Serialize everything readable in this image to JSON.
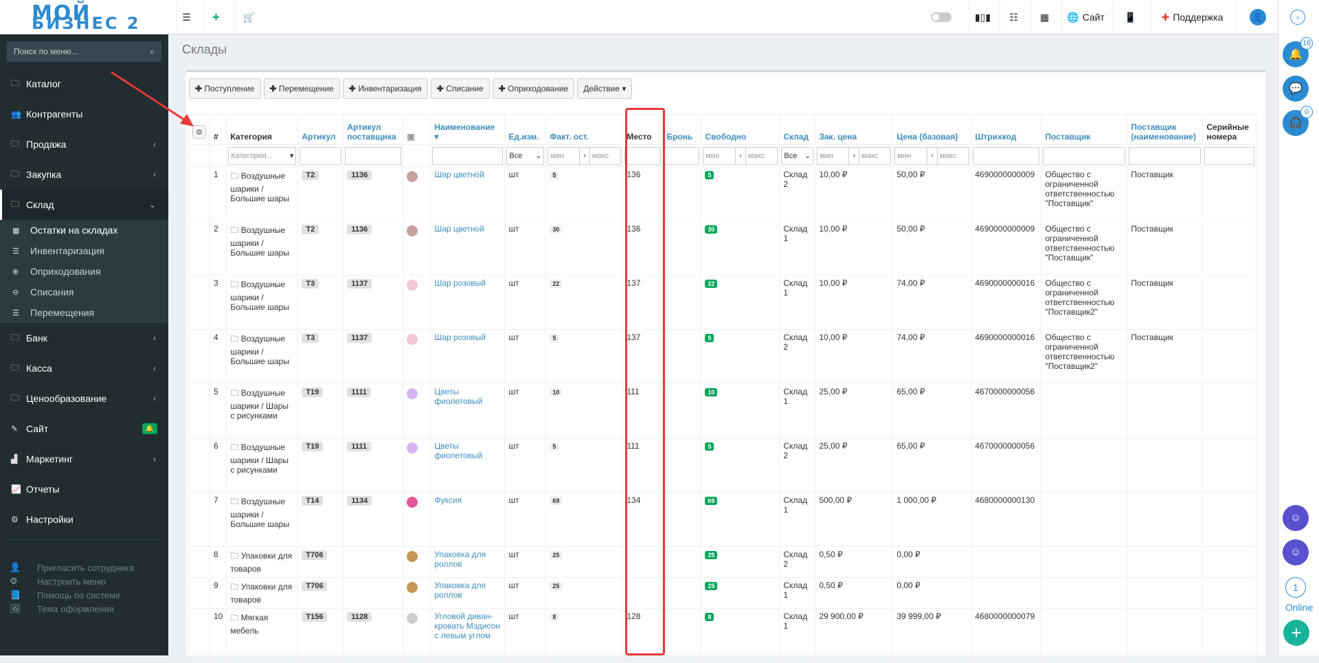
{
  "logo": {
    "line1": "МОЙ",
    "line2": "БИЗНЕС 2"
  },
  "topbar": {
    "site_label": "Сайт",
    "support_label": "Поддержка"
  },
  "sidebar": {
    "search_placeholder": "Поиск по меню...",
    "items": [
      {
        "label": "Каталог",
        "icon": "folder-icon"
      },
      {
        "label": "Контрагенты",
        "icon": "users-icon"
      },
      {
        "label": "Продажа",
        "icon": "folder-icon"
      },
      {
        "label": "Закупка",
        "icon": "folder-icon"
      },
      {
        "label": "Склад",
        "icon": "folder-icon"
      },
      {
        "label": "Банк",
        "icon": "folder-icon"
      },
      {
        "label": "Касса",
        "icon": "folder-icon"
      },
      {
        "label": "Ценообразование",
        "icon": "folder-icon"
      },
      {
        "label": "Сайт",
        "icon": "magic-icon"
      },
      {
        "label": "Маркетинг",
        "icon": "chart-icon"
      },
      {
        "label": "Отчеты",
        "icon": "line-chart-icon"
      },
      {
        "label": "Настройки",
        "icon": "gear-icon"
      }
    ],
    "sub_items": [
      "Остатки на складах",
      "Инвентаризация",
      "Оприходования",
      "Списания",
      "Перемещения"
    ],
    "footer": [
      "Пригласить сотрудника",
      "Настроить меню",
      "Помощь по системе",
      "Тема оформления"
    ]
  },
  "right": {
    "badge1": "16",
    "badge2": "0",
    "online_count": "1",
    "online_label": "Online"
  },
  "page": {
    "title": "Склады"
  },
  "toolbar": {
    "b1": "Поступление",
    "b2": "Перемещение",
    "b3": "Инвентаризация",
    "b4": "Списание",
    "b5": "Оприходование",
    "b6": "Действие"
  },
  "table": {
    "headers": {
      "num": "#",
      "category": "Категория",
      "sku": "Артикул",
      "supplier_sku": "Артикул поставщика",
      "name": "Наименование",
      "unit": "Ед.изм.",
      "fact": "Факт. ост.",
      "place": "Место",
      "reserve": "Бронь",
      "free": "Свободно",
      "warehouse": "Склад",
      "cost": "Зак. цена",
      "price": "Цена (базовая)",
      "barcode": "Штрихкод",
      "supplier": "Поставщик",
      "supplier_name": "Поставщик (наименование)",
      "serial": "Серийные номера"
    },
    "filters": {
      "category_ph": "Категория...",
      "all1": "Все",
      "all2": "Все",
      "min": "мин",
      "max": "макс"
    },
    "rows": [
      {
        "n": "1",
        "cat": "Воздушные шарики / Большие шары",
        "sku": "T2",
        "ssku": "1136",
        "name": "Шар цветной",
        "unit": "шт",
        "fact": "5",
        "place": "136",
        "free": "5",
        "wh": "Склад 2",
        "cost": "10,00 ₽",
        "price": "50,00 ₽",
        "bar": "4690000000009",
        "sup": "Общество с ограниченной ответственностью \"Поставщик\"",
        "supn": "Поставщик",
        "thumb": "#c8a0a0"
      },
      {
        "n": "2",
        "cat": "Воздушные шарики / Большие шары",
        "sku": "T2",
        "ssku": "1136",
        "name": "Шар цветной",
        "unit": "шт",
        "fact": "30",
        "place": "136",
        "free": "30",
        "wh": "Склад 1",
        "cost": "10,00 ₽",
        "price": "50,00 ₽",
        "bar": "4690000000009",
        "sup": "Общество с ограниченной ответственностью \"Поставщик\"",
        "supn": "Поставщик",
        "thumb": "#c8a0a0"
      },
      {
        "n": "3",
        "cat": "Воздушные шарики / Большие шары",
        "sku": "T3",
        "ssku": "1137",
        "name": "Шар розовый",
        "unit": "шт",
        "fact": "22",
        "place": "137",
        "free": "22",
        "wh": "Склад 1",
        "cost": "10,00 ₽",
        "price": "74,00 ₽",
        "bar": "4690000000016",
        "sup": "Общество с ограниченной ответственностью \"Поставщик2\"",
        "supn": "Поставщик",
        "thumb": "#f2c6d6"
      },
      {
        "n": "4",
        "cat": "Воздушные шарики / Большие шары",
        "sku": "T3",
        "ssku": "1137",
        "name": "Шар розовый",
        "unit": "шт",
        "fact": "5",
        "place": "137",
        "free": "5",
        "wh": "Склад 2",
        "cost": "10,00 ₽",
        "price": "74,00 ₽",
        "bar": "4690000000016",
        "sup": "Общество с ограниченной ответственностью \"Поставщик2\"",
        "supn": "Поставщик",
        "thumb": "#f2c6d6"
      },
      {
        "n": "5",
        "cat": "Воздушные шарики / Шары с рисунками",
        "sku": "T19",
        "ssku": "1111",
        "name": "Цветы фиолетовый",
        "unit": "шт",
        "fact": "10",
        "place": "111",
        "free": "10",
        "wh": "Склад 1",
        "cost": "25,00 ₽",
        "price": "65,00 ₽",
        "bar": "4670000000056",
        "sup": "",
        "supn": "",
        "thumb": "#d9b3f0"
      },
      {
        "n": "6",
        "cat": "Воздушные шарики / Шары с рисунками",
        "sku": "T19",
        "ssku": "1111",
        "name": "Цветы фиолетовый",
        "unit": "шт",
        "fact": "5",
        "place": "111",
        "free": "5",
        "wh": "Склад 2",
        "cost": "25,00 ₽",
        "price": "65,00 ₽",
        "bar": "4670000000056",
        "sup": "",
        "supn": "",
        "thumb": "#d9b3f0"
      },
      {
        "n": "7",
        "cat": "Воздушные шарики / Большие шары",
        "sku": "T14",
        "ssku": "1134",
        "name": "Фуксия",
        "unit": "шт",
        "fact": "69",
        "place": "134",
        "free": "69",
        "wh": "Склад 1",
        "cost": "500,00 ₽",
        "price": "1 000,00 ₽",
        "bar": "4680000000130",
        "sup": "",
        "supn": "",
        "thumb": "#e4559a"
      },
      {
        "n": "8",
        "cat": "Упаковки для товаров",
        "sku": "T706",
        "ssku": "",
        "name": "Упаковка для роллов",
        "unit": "шт",
        "fact": "25",
        "place": "",
        "free": "25",
        "wh": "Склад 2",
        "cost": "0,50 ₽",
        "price": "0,00 ₽",
        "bar": "",
        "sup": "",
        "supn": "",
        "thumb": "#c8955a"
      },
      {
        "n": "9",
        "cat": "Упаковки для товаров",
        "sku": "T706",
        "ssku": "",
        "name": "Упаковка для роллов",
        "unit": "шт",
        "fact": "25",
        "place": "",
        "free": "25",
        "wh": "Склад 1",
        "cost": "0,50 ₽",
        "price": "0,00 ₽",
        "bar": "",
        "sup": "",
        "supn": "",
        "thumb": "#c8955a"
      },
      {
        "n": "10",
        "cat": "Мягкая мебель",
        "sku": "T156",
        "ssku": "1128",
        "name": "Угловой диван-кровать Мэдисон с левым углом",
        "unit": "шт",
        "fact": "8",
        "place": "128",
        "free": "8",
        "wh": "Склад 1",
        "cost": "29 900,00 ₽",
        "price": "39 999,00 ₽",
        "bar": "4680000000079",
        "sup": "",
        "supn": "",
        "thumb": "#cfcfcf"
      }
    ]
  }
}
